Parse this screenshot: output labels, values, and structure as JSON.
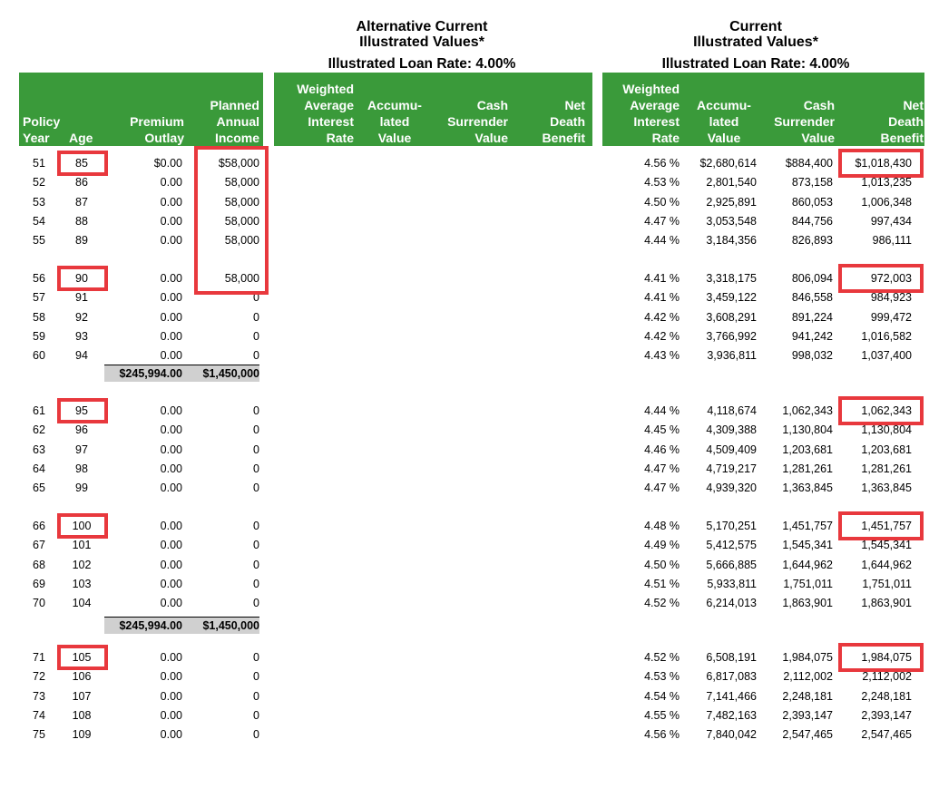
{
  "groups": {
    "alternative": {
      "title_line1": "Alternative Current",
      "title_line2": "Illustrated Values*",
      "loan_rate": "Illustrated Loan Rate: 4.00%"
    },
    "current": {
      "title_line1": "Current",
      "title_line2": "Illustrated Values*",
      "loan_rate": "Illustrated Loan Rate: 4.00%"
    }
  },
  "headers": {
    "policy_year": "Policy\nYear",
    "age": "Age",
    "premium_outlay": "Premium\nOutlay",
    "planned_income": "Planned\nAnnual\nIncome",
    "alt_interest": "Weighted\nAverage\nInterest\nRate",
    "alt_accum": "Accumu-\nlated\nValue",
    "alt_cash": "Cash\nSurrender\nValue",
    "alt_death": "Net\nDeath\nBenefit",
    "cur_interest": "Weighted\nAverage\nInterest\nRate",
    "cur_accum": "Accumu-\nlated\nValue",
    "cur_cash": "Cash\nSurrender\nValue",
    "cur_death": "Net\nDeath\nBenefit"
  },
  "rows": [
    {
      "year": "51",
      "age": "85",
      "premium": "$0.00",
      "income": "$58,000",
      "rate": "4.56 %",
      "accum": "$2,680,614",
      "cash": "$884,400",
      "death": "$1,018,430"
    },
    {
      "year": "52",
      "age": "86",
      "premium": "0.00",
      "income": "58,000",
      "rate": "4.53 %",
      "accum": "2,801,540",
      "cash": "873,158",
      "death": "1,013,235"
    },
    {
      "year": "53",
      "age": "87",
      "premium": "0.00",
      "income": "58,000",
      "rate": "4.50 %",
      "accum": "2,925,891",
      "cash": "860,053",
      "death": "1,006,348"
    },
    {
      "year": "54",
      "age": "88",
      "premium": "0.00",
      "income": "58,000",
      "rate": "4.47 %",
      "accum": "3,053,548",
      "cash": "844,756",
      "death": "997,434"
    },
    {
      "year": "55",
      "age": "89",
      "premium": "0.00",
      "income": "58,000",
      "rate": "4.44 %",
      "accum": "3,184,356",
      "cash": "826,893",
      "death": "986,111"
    },
    {
      "year": "56",
      "age": "90",
      "premium": "0.00",
      "income": "58,000",
      "rate": "4.41 %",
      "accum": "3,318,175",
      "cash": "806,094",
      "death": "972,003"
    },
    {
      "year": "57",
      "age": "91",
      "premium": "0.00",
      "income": "0",
      "rate": "4.41 %",
      "accum": "3,459,122",
      "cash": "846,558",
      "death": "984,923"
    },
    {
      "year": "58",
      "age": "92",
      "premium": "0.00",
      "income": "0",
      "rate": "4.42 %",
      "accum": "3,608,291",
      "cash": "891,224",
      "death": "999,472"
    },
    {
      "year": "59",
      "age": "93",
      "premium": "0.00",
      "income": "0",
      "rate": "4.42 %",
      "accum": "3,766,992",
      "cash": "941,242",
      "death": "1,016,582"
    },
    {
      "year": "60",
      "age": "94",
      "premium": "0.00",
      "income": "0",
      "rate": "4.43 %",
      "accum": "3,936,811",
      "cash": "998,032",
      "death": "1,037,400"
    },
    {
      "year": "61",
      "age": "95",
      "premium": "0.00",
      "income": "0",
      "rate": "4.44 %",
      "accum": "4,118,674",
      "cash": "1,062,343",
      "death": "1,062,343"
    },
    {
      "year": "62",
      "age": "96",
      "premium": "0.00",
      "income": "0",
      "rate": "4.45 %",
      "accum": "4,309,388",
      "cash": "1,130,804",
      "death": "1,130,804"
    },
    {
      "year": "63",
      "age": "97",
      "premium": "0.00",
      "income": "0",
      "rate": "4.46 %",
      "accum": "4,509,409",
      "cash": "1,203,681",
      "death": "1,203,681"
    },
    {
      "year": "64",
      "age": "98",
      "premium": "0.00",
      "income": "0",
      "rate": "4.47 %",
      "accum": "4,719,217",
      "cash": "1,281,261",
      "death": "1,281,261"
    },
    {
      "year": "65",
      "age": "99",
      "premium": "0.00",
      "income": "0",
      "rate": "4.47 %",
      "accum": "4,939,320",
      "cash": "1,363,845",
      "death": "1,363,845"
    },
    {
      "year": "66",
      "age": "100",
      "premium": "0.00",
      "income": "0",
      "rate": "4.48 %",
      "accum": "5,170,251",
      "cash": "1,451,757",
      "death": "1,451,757"
    },
    {
      "year": "67",
      "age": "101",
      "premium": "0.00",
      "income": "0",
      "rate": "4.49 %",
      "accum": "5,412,575",
      "cash": "1,545,341",
      "death": "1,545,341"
    },
    {
      "year": "68",
      "age": "102",
      "premium": "0.00",
      "income": "0",
      "rate": "4.50 %",
      "accum": "5,666,885",
      "cash": "1,644,962",
      "death": "1,644,962"
    },
    {
      "year": "69",
      "age": "103",
      "premium": "0.00",
      "income": "0",
      "rate": "4.51 %",
      "accum": "5,933,811",
      "cash": "1,751,011",
      "death": "1,751,011"
    },
    {
      "year": "70",
      "age": "104",
      "premium": "0.00",
      "income": "0",
      "rate": "4.52 %",
      "accum": "6,214,013",
      "cash": "1,863,901",
      "death": "1,863,901"
    },
    {
      "year": "71",
      "age": "105",
      "premium": "0.00",
      "income": "0",
      "rate": "4.52 %",
      "accum": "6,508,191",
      "cash": "1,984,075",
      "death": "1,984,075"
    },
    {
      "year": "72",
      "age": "106",
      "premium": "0.00",
      "income": "0",
      "rate": "4.53 %",
      "accum": "6,817,083",
      "cash": "2,112,002",
      "death": "2,112,002"
    },
    {
      "year": "73",
      "age": "107",
      "premium": "0.00",
      "income": "0",
      "rate": "4.54 %",
      "accum": "7,141,466",
      "cash": "2,248,181",
      "death": "2,248,181"
    },
    {
      "year": "74",
      "age": "108",
      "premium": "0.00",
      "income": "0",
      "rate": "4.55 %",
      "accum": "7,482,163",
      "cash": "2,393,147",
      "death": "2,393,147"
    },
    {
      "year": "75",
      "age": "109",
      "premium": "0.00",
      "income": "0",
      "rate": "4.56 %",
      "accum": "7,840,042",
      "cash": "2,547,465",
      "death": "2,547,465"
    }
  ],
  "totals": [
    {
      "premium": "$245,994.00",
      "income": "$1,450,000"
    },
    {
      "premium": "$245,994.00",
      "income": "$1,450,000"
    }
  ],
  "highlight_color": "#e8383d",
  "header_color": "#3a9a3a"
}
